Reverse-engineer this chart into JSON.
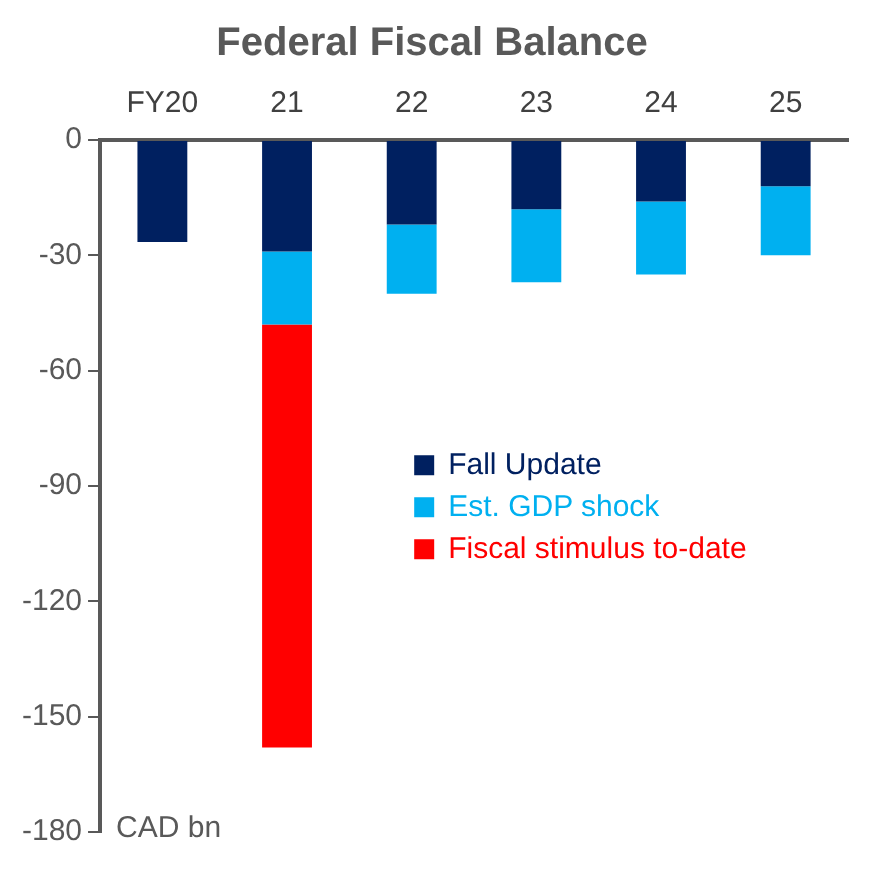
{
  "chart_data": {
    "type": "bar",
    "title": "Federal Fiscal Balance",
    "ylabel": "CAD bn",
    "categories": [
      "FY20",
      "21",
      "22",
      "23",
      "24",
      "25"
    ],
    "stacked": true,
    "series": [
      {
        "name": "Fall Update",
        "color": "#002060",
        "values": [
          -26.5,
          -29,
          -22,
          -18,
          -16,
          -12
        ]
      },
      {
        "name": "Est. GDP shock",
        "color": "#00b0f0",
        "values": [
          null,
          -19,
          -18,
          -19,
          -19,
          -18
        ]
      },
      {
        "name": "Fiscal stimulus to-date",
        "color": "#ff0000",
        "values": [
          null,
          -110,
          null,
          null,
          null,
          null
        ]
      }
    ],
    "ylim": [
      -180,
      0
    ],
    "yticks": [
      -180,
      -150,
      -120,
      -90,
      -60,
      -30,
      0
    ],
    "grid": false,
    "legend": "right"
  }
}
